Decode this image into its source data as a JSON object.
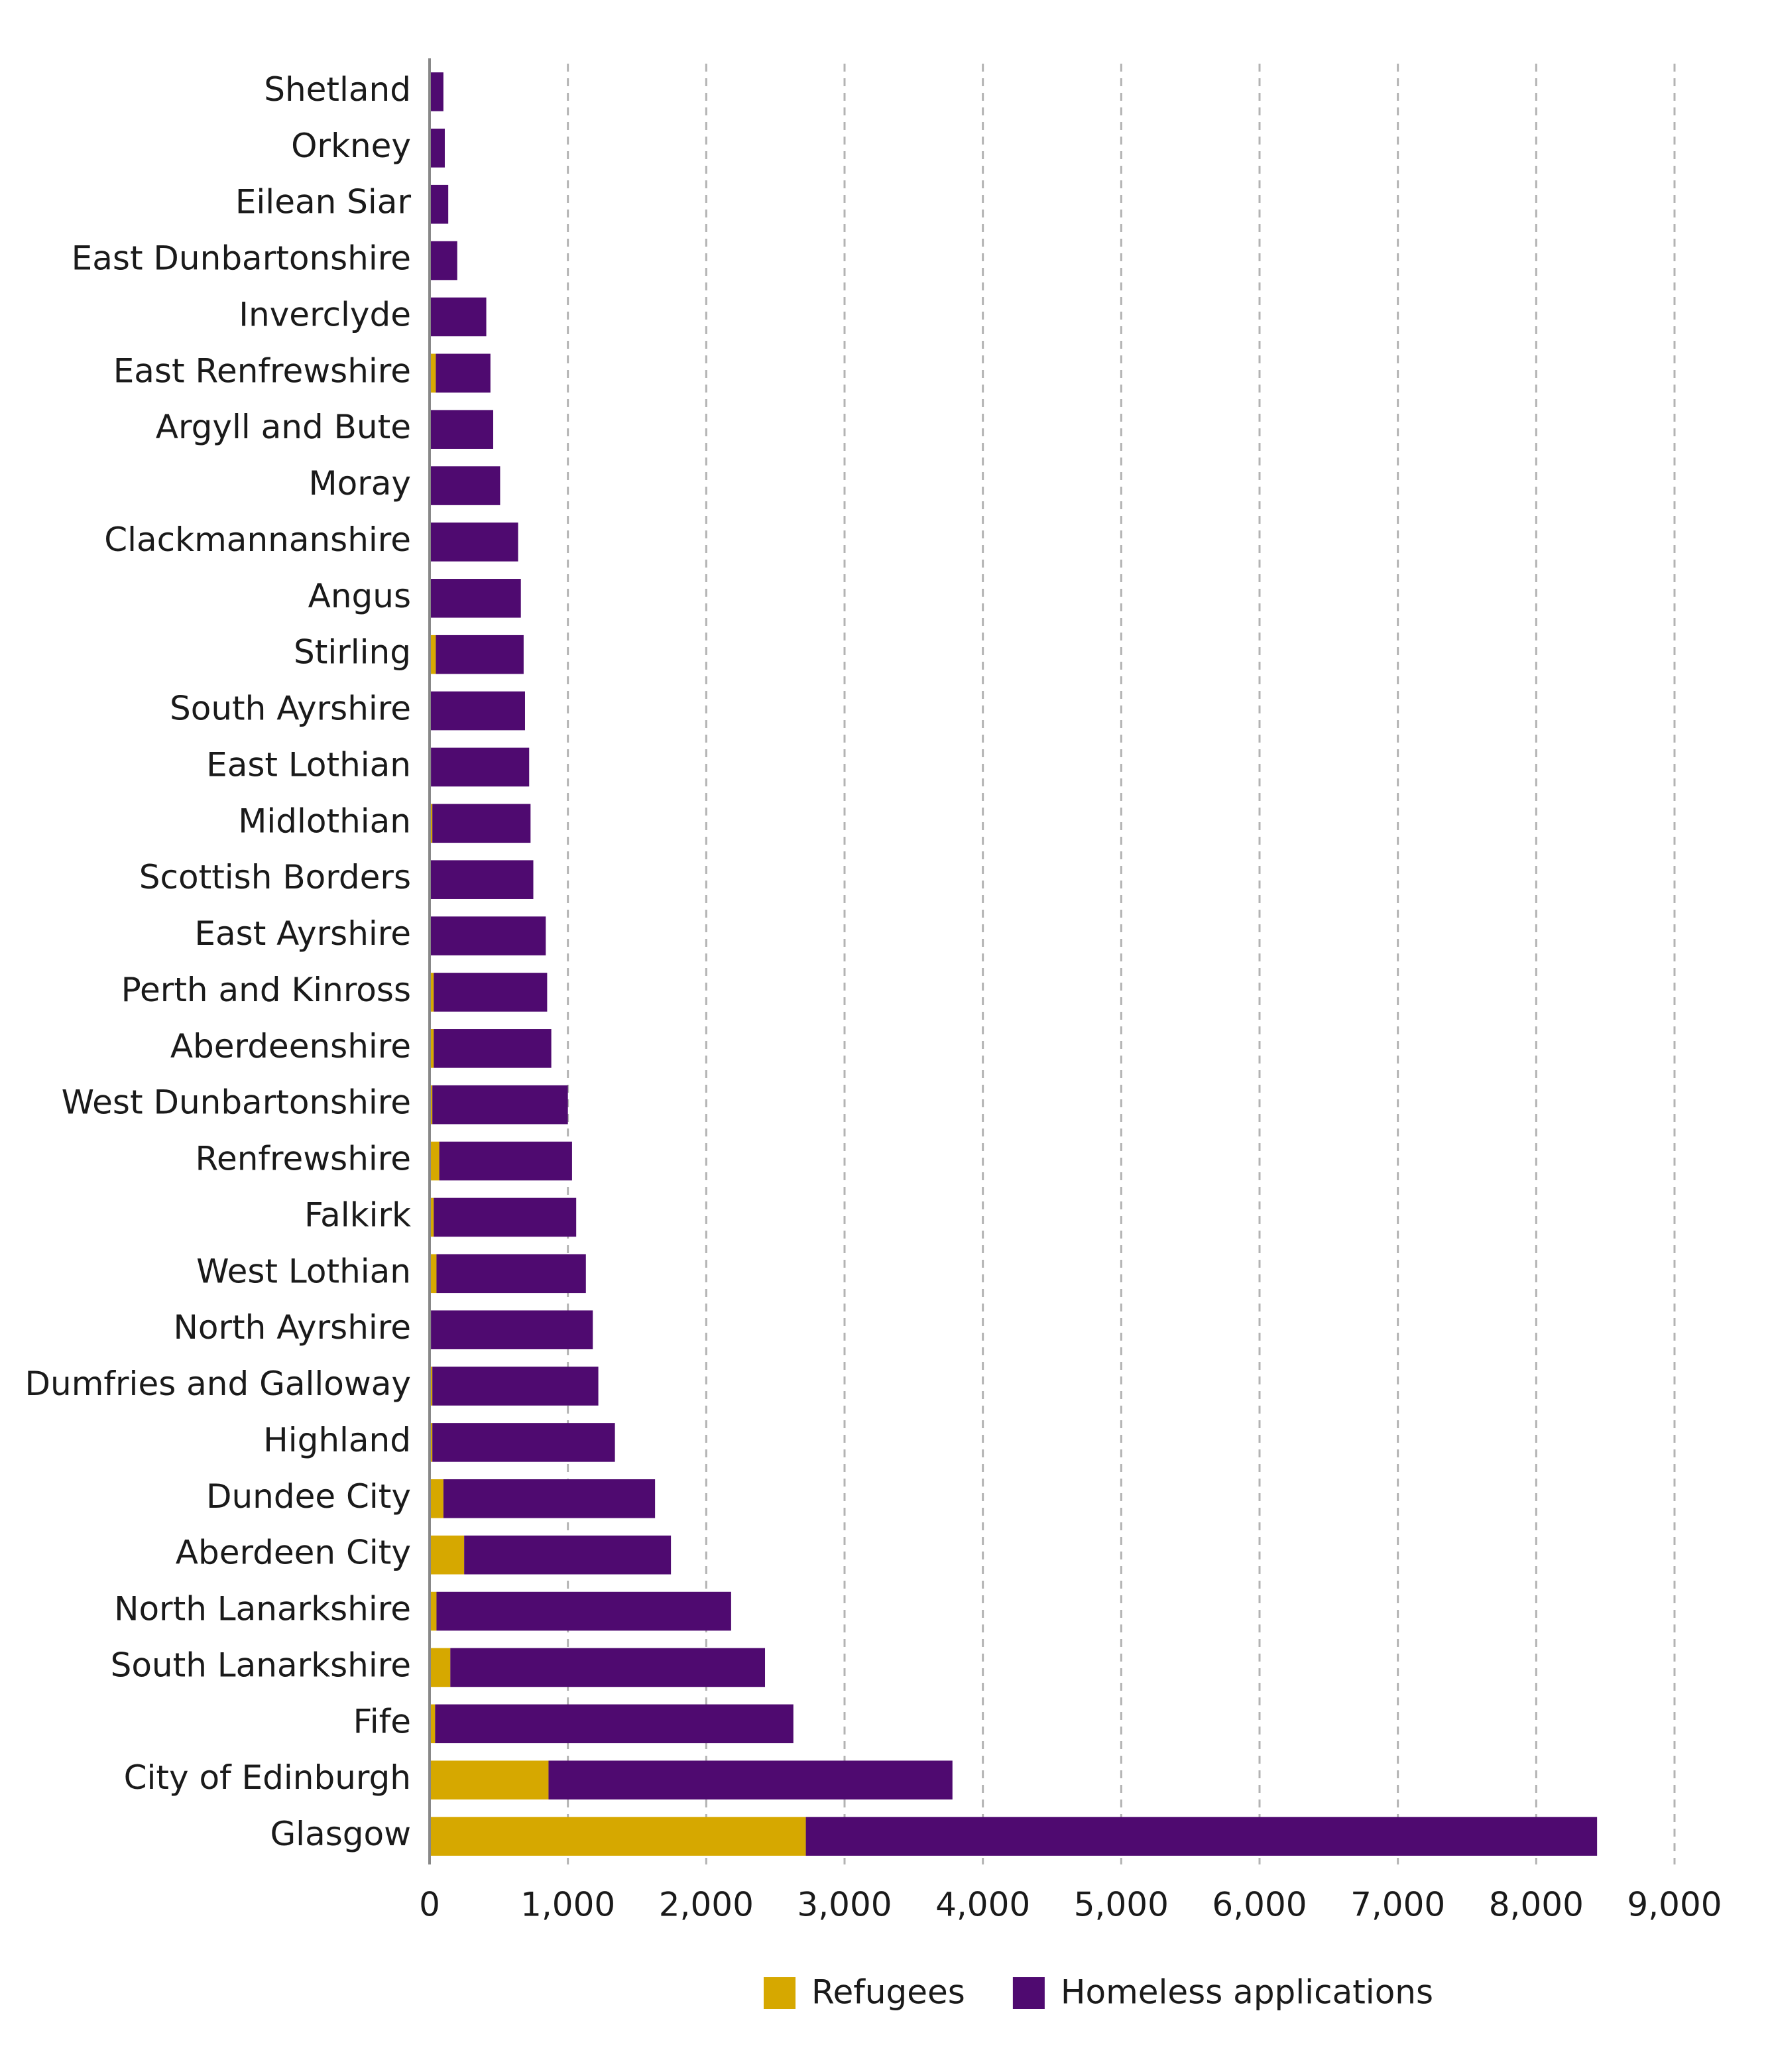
{
  "chart_data": {
    "type": "stacked-barh",
    "categories": [
      "Shetland",
      "Orkney",
      "Eilean Siar",
      "East Dunbartonshire",
      "Inverclyde",
      "East Renfrewshire",
      "Argyll and Bute",
      "Moray",
      "Clackmannanshire",
      "Angus",
      "Stirling",
      "South Ayrshire",
      "East Lothian",
      "Midlothian",
      "Scottish Borders",
      "East Ayrshire",
      "Perth and Kinross",
      "Aberdeenshire",
      "West Dunbartonshire",
      "Renfrewshire",
      "Falkirk",
      "West Lothian",
      "North Ayrshire",
      "Dumfries and Galloway",
      "Highland",
      "Dundee City",
      "Aberdeen City",
      "North Lanarkshire",
      "South Lanarkshire",
      "Fife",
      "City of Edinburgh",
      "Glasgow"
    ],
    "series": [
      {
        "name": "Refugees",
        "color": "#d6a800",
        "values": [
          0,
          0,
          0,
          0,
          5,
          45,
          0,
          0,
          0,
          0,
          45,
          0,
          10,
          20,
          0,
          0,
          30,
          30,
          20,
          70,
          30,
          50,
          10,
          20,
          20,
          100,
          250,
          50,
          150,
          40,
          860,
          2720
        ]
      },
      {
        "name": "Homeless applications",
        "color": "#4f0a70",
        "values": [
          100,
          110,
          135,
          200,
          405,
          395,
          460,
          510,
          640,
          660,
          635,
          690,
          710,
          710,
          750,
          840,
          820,
          850,
          980,
          960,
          1030,
          1080,
          1170,
          1200,
          1320,
          1530,
          1495,
          2130,
          2275,
          2590,
          2920,
          5720
        ]
      }
    ],
    "xlim": [
      0,
      9000
    ],
    "xticks": [
      0,
      {
        "value": 1000,
        "label": "1,000"
      },
      {
        "value": 2000,
        "label": "2,000"
      },
      {
        "value": 3000,
        "label": "3,000"
      },
      {
        "value": 4000,
        "label": "4,000"
      },
      {
        "value": 5000,
        "label": "5,000"
      },
      {
        "value": 6000,
        "label": "6,000"
      },
      {
        "value": 7000,
        "label": "7,000"
      },
      {
        "value": 8000,
        "label": "8,000"
      },
      {
        "value": 9000,
        "label": "9,000"
      }
    ],
    "grid": true,
    "legend": "bottom"
  }
}
